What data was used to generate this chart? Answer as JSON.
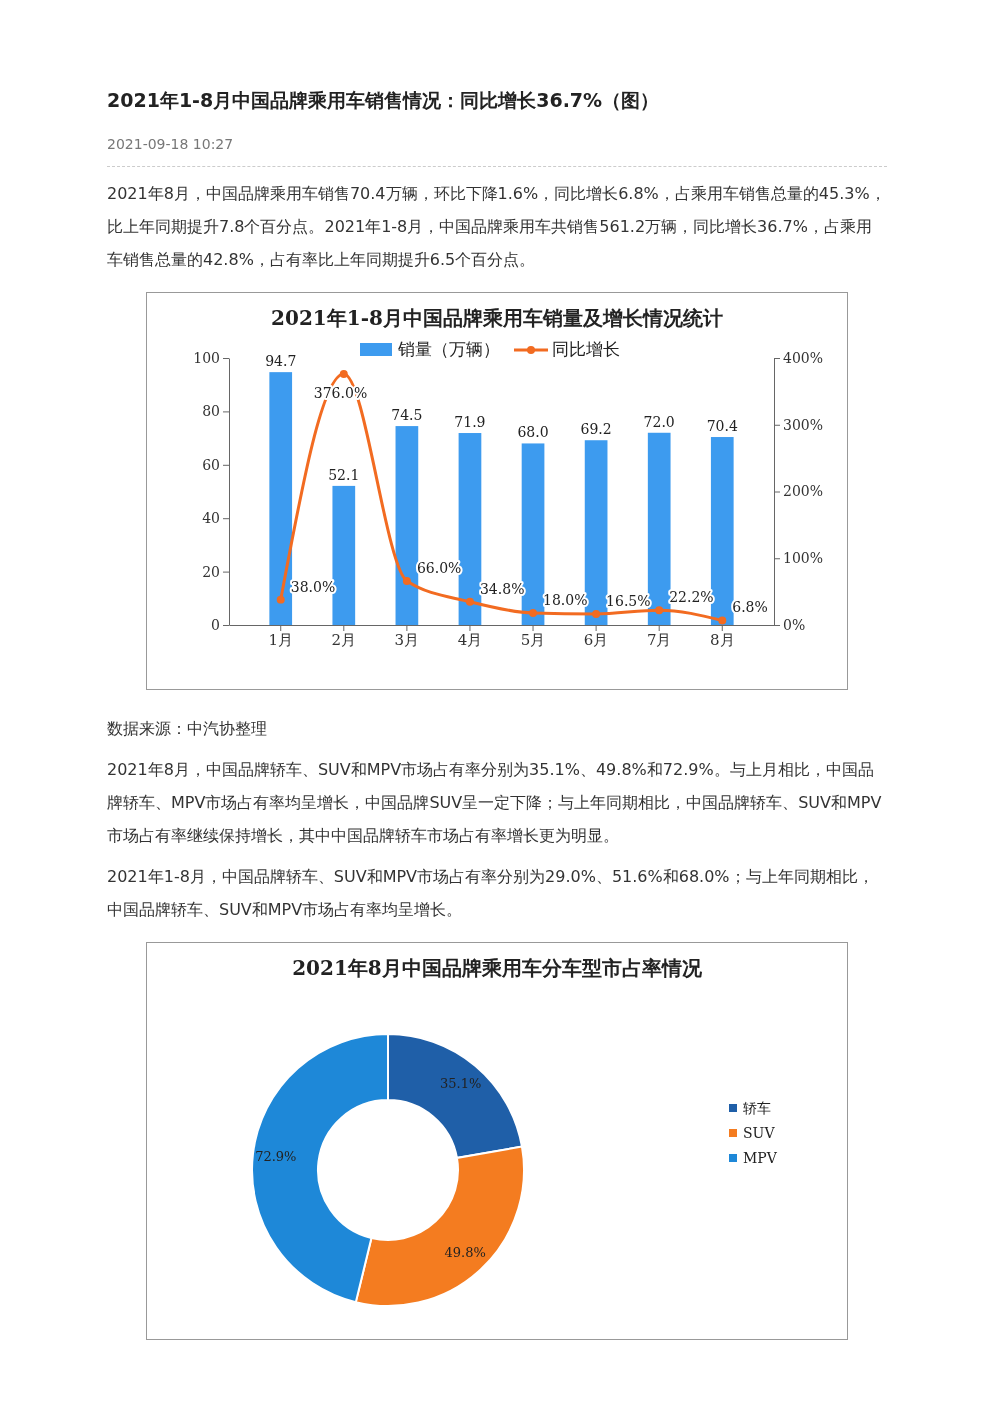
{
  "chart_data": [
    {
      "type": "bar",
      "title": "2021年1-8月中国品牌乘用车销量及增长情况统计",
      "annotations": [
        "2021年1-8月中国品牌乘用车销售情况：同比增长36.7%（图）",
        "2021-09-18 10:27",
        "2021年8月，中国品牌乘用车销售70.4万辆，环比下降1.6%，同比增长6.8%，占乘用车销售总量的45.3%，比上年同期提升7.8个百分点。2021年1-8月，中国品牌乘用车共销售561.2万辆，同比增长36.7%，占乘用车销售总量的42.8%，占有率比上年同期提升6.5个百分点。"
      ],
      "categories": [
        "1月",
        "2月",
        "3月",
        "4月",
        "5月",
        "6月",
        "7月",
        "8月"
      ],
      "series": [
        {
          "name": "销量（万辆）",
          "type": "bar",
          "color": "#3d9bef",
          "values": [
            94.7,
            52.1,
            74.5,
            71.9,
            68.0,
            69.2,
            72.0,
            70.4
          ],
          "value_labels": [
            "94.7",
            "52.1",
            "74.5",
            "71.9",
            "68.0",
            "69.2",
            "72.0",
            "70.4"
          ]
        },
        {
          "name": "同比增长",
          "type": "line",
          "axis": "y2",
          "color": "#f26b21",
          "values": [
            38.0,
            376.0,
            66.0,
            34.8,
            18.0,
            16.5,
            22.2,
            6.8
          ],
          "value_labels": [
            "38.0%",
            "376.0%",
            "66.0%",
            "34.8%",
            "18.0%",
            "16.5%",
            "22.2%",
            "6.8%"
          ]
        }
      ],
      "ylim": [
        0,
        100
      ],
      "yticks": [
        0,
        20,
        40,
        60,
        80,
        100
      ],
      "y2lim": [
        0,
        400
      ],
      "y2ticks": [
        {
          "value": 0,
          "label": "0%"
        },
        {
          "value": 100,
          "label": "100%"
        },
        {
          "value": 200,
          "label": "200%"
        },
        {
          "value": 300,
          "label": "300%"
        },
        {
          "value": 400,
          "label": "400%"
        }
      ],
      "legend": "top",
      "marker": "circle"
    },
    {
      "type": "donut",
      "title": "2021年8月中国品牌乘用车分车型市占率情况",
      "annotations": [
        "数据来源：中汽协整理",
        "2021年8月，中国品牌轿车、SUV和MPV市场占有率分别为35.1%、49.8%和72.9%。与上月相比，中国品牌轿车、MPV市场占有率均呈增长，中国品牌SUV呈一定下降；与上年同期相比，中国品牌轿车、SUV和MPV市场占有率继续保持增长，其中中国品牌轿车市场占有率增长更为明显。",
        "2021年1-8月，中国品牌轿车、SUV和MPV市场占有率分别为29.0%、51.6%和68.0%；与上年同期相比，中国品牌轿车、SUV和MPV市场占有率均呈增长。"
      ],
      "categories": [
        "轿车",
        "SUV",
        "MPV"
      ],
      "values": [
        35.1,
        49.8,
        72.9
      ],
      "colors": [
        "#1f5fa8",
        "#f47c20",
        "#1e88d8"
      ],
      "value_labels": [
        "35.1%",
        "49.8%",
        "72.9%"
      ],
      "legend": "right"
    }
  ]
}
